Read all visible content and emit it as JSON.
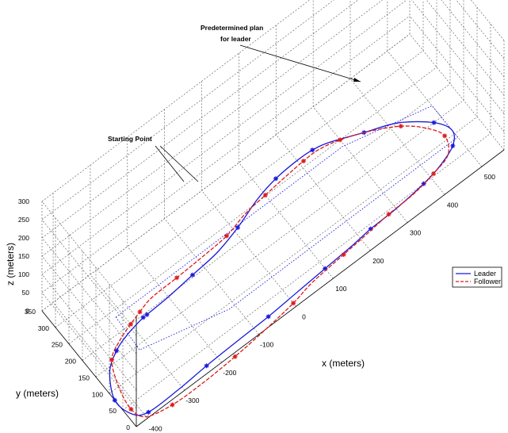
{
  "chart_data": {
    "type": "line",
    "projection": "3d",
    "xlabel": "x (meters)",
    "ylabel": "y (meters)",
    "zlabel": "z (meters)",
    "x_ticks": [
      "-400",
      "-300",
      "-200",
      "-100",
      "0",
      "100",
      "200",
      "300",
      "400",
      "500"
    ],
    "y_ticks": [
      "0",
      "50",
      "100",
      "150",
      "200",
      "250",
      "300",
      "350"
    ],
    "z_ticks": [
      "0",
      "50",
      "100",
      "150",
      "200",
      "250",
      "300"
    ],
    "xlim": [
      -430,
      560
    ],
    "ylim": [
      0,
      350
    ],
    "zlim": [
      0,
      300
    ],
    "grid": true,
    "legend_position": "right",
    "annotations": {
      "plan": [
        "Predetermined plan",
        "for leader"
      ],
      "start": "Starting Point"
    },
    "colors": {
      "leader": "#1a1adc",
      "follower": "#dc1a1a",
      "plan": "#1a1adc",
      "grid": "#555555"
    },
    "series": [
      {
        "name": "Leader",
        "style": "solid-star",
        "z": 0,
        "points": [
          [
            -260,
            195
          ],
          [
            -200,
            198
          ],
          [
            -130,
            205
          ],
          [
            -60,
            212
          ],
          [
            10,
            230
          ],
          [
            80,
            255
          ],
          [
            140,
            268
          ],
          [
            200,
            272
          ],
          [
            240,
            270
          ],
          [
            280,
            260
          ],
          [
            350,
            230
          ],
          [
            420,
            200
          ],
          [
            480,
            150
          ],
          [
            500,
            110
          ],
          [
            480,
            80
          ],
          [
            430,
            60
          ],
          [
            380,
            50
          ],
          [
            300,
            42
          ],
          [
            230,
            40
          ],
          [
            180,
            35
          ],
          [
            100,
            30
          ],
          [
            20,
            25
          ],
          [
            -60,
            20
          ],
          [
            -140,
            18
          ],
          [
            -230,
            15
          ],
          [
            -310,
            10
          ],
          [
            -390,
            10
          ],
          [
            -420,
            30
          ],
          [
            -430,
            80
          ],
          [
            -400,
            140
          ],
          [
            -360,
            170
          ],
          [
            -320,
            185
          ],
          [
            -270,
            195
          ]
        ]
      },
      {
        "name": "Follower",
        "style": "dashed-star",
        "z": 0,
        "points": [
          [
            -268,
            210
          ],
          [
            -230,
            220
          ],
          [
            -160,
            222
          ],
          [
            -90,
            225
          ],
          [
            -20,
            230
          ],
          [
            40,
            245
          ],
          [
            100,
            252
          ],
          [
            160,
            258
          ],
          [
            210,
            262
          ],
          [
            250,
            262
          ],
          [
            300,
            250
          ],
          [
            360,
            225
          ],
          [
            420,
            190
          ],
          [
            460,
            150
          ],
          [
            480,
            110
          ],
          [
            460,
            70
          ],
          [
            410,
            55
          ],
          [
            350,
            45
          ],
          [
            280,
            42
          ],
          [
            210,
            35
          ],
          [
            150,
            30
          ],
          [
            60,
            22
          ],
          [
            0,
            10
          ],
          [
            -80,
            0
          ],
          [
            -170,
            -8
          ],
          [
            -260,
            -12
          ],
          [
            -340,
            -10
          ],
          [
            -400,
            5
          ],
          [
            -415,
            40
          ],
          [
            -405,
            100
          ],
          [
            -380,
            160
          ],
          [
            -340,
            185
          ],
          [
            -300,
            200
          ],
          [
            -268,
            210
          ]
        ]
      },
      {
        "name": "",
        "style": "dotted",
        "z": 50,
        "points": [
          [
            -340,
            200
          ],
          [
            270,
            200
          ],
          [
            475,
            150
          ],
          [
            475,
            55
          ],
          [
            -140,
            55
          ],
          [
            -345,
            105
          ],
          [
            -340,
            200
          ]
        ]
      }
    ]
  }
}
